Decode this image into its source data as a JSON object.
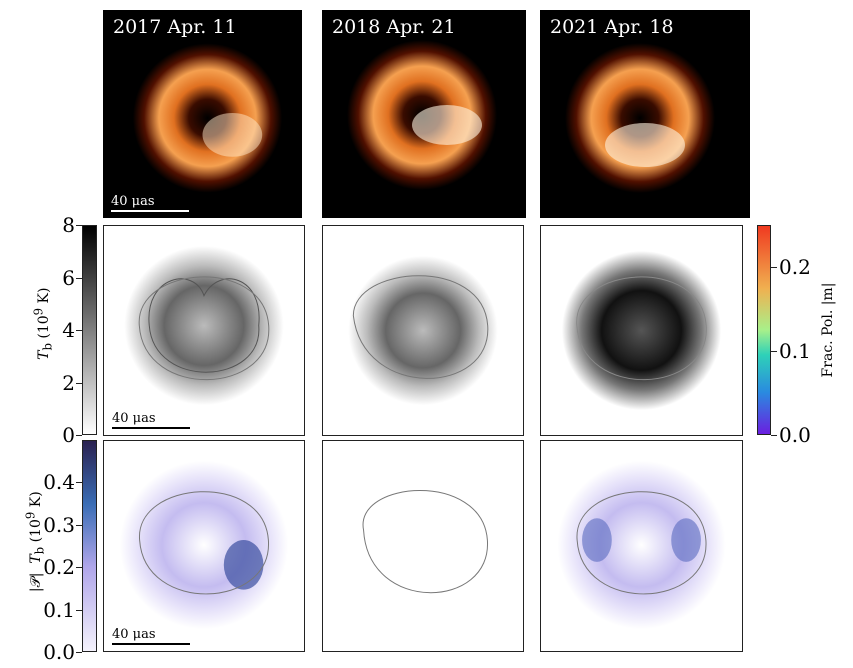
{
  "epochs": [
    "2017 Apr. 11",
    "2018 Apr. 21",
    "2021 Apr. 18"
  ],
  "scale_label": "40 μas",
  "colorbars": {
    "brightness": {
      "label": "T_b (10^9 K)",
      "label_main": "T",
      "label_sub": "b",
      "label_unit": "(10",
      "label_exp": "9",
      "label_unit_end": " K)",
      "ticks": [
        "0",
        "2",
        "4",
        "6",
        "8"
      ],
      "range": [
        0,
        8
      ],
      "colors": [
        "#ffffff",
        "#000000"
      ]
    },
    "polarized": {
      "label_prefix": "|𝒫|",
      "label_main": "T",
      "label_sub": "b",
      "label_unit": "(10",
      "label_exp": "9",
      "label_unit_end": " K)",
      "ticks": [
        "0.0",
        "0.1",
        "0.2",
        "0.3",
        "0.4"
      ],
      "range": [
        0,
        0.5
      ],
      "colors": [
        "#f4f2fc",
        "#b0a6ea",
        "#3a6db5",
        "#2a2150"
      ]
    },
    "fractional": {
      "label": "Frac. Pol. |m|",
      "ticks": [
        "0.0",
        "0.1",
        "0.2"
      ],
      "range": [
        0,
        0.25
      ],
      "colors": [
        "#6a1fe0",
        "#2a8ae0",
        "#2ed1b8",
        "#a8f08a",
        "#f0b050",
        "#f03a20"
      ]
    }
  }
}
